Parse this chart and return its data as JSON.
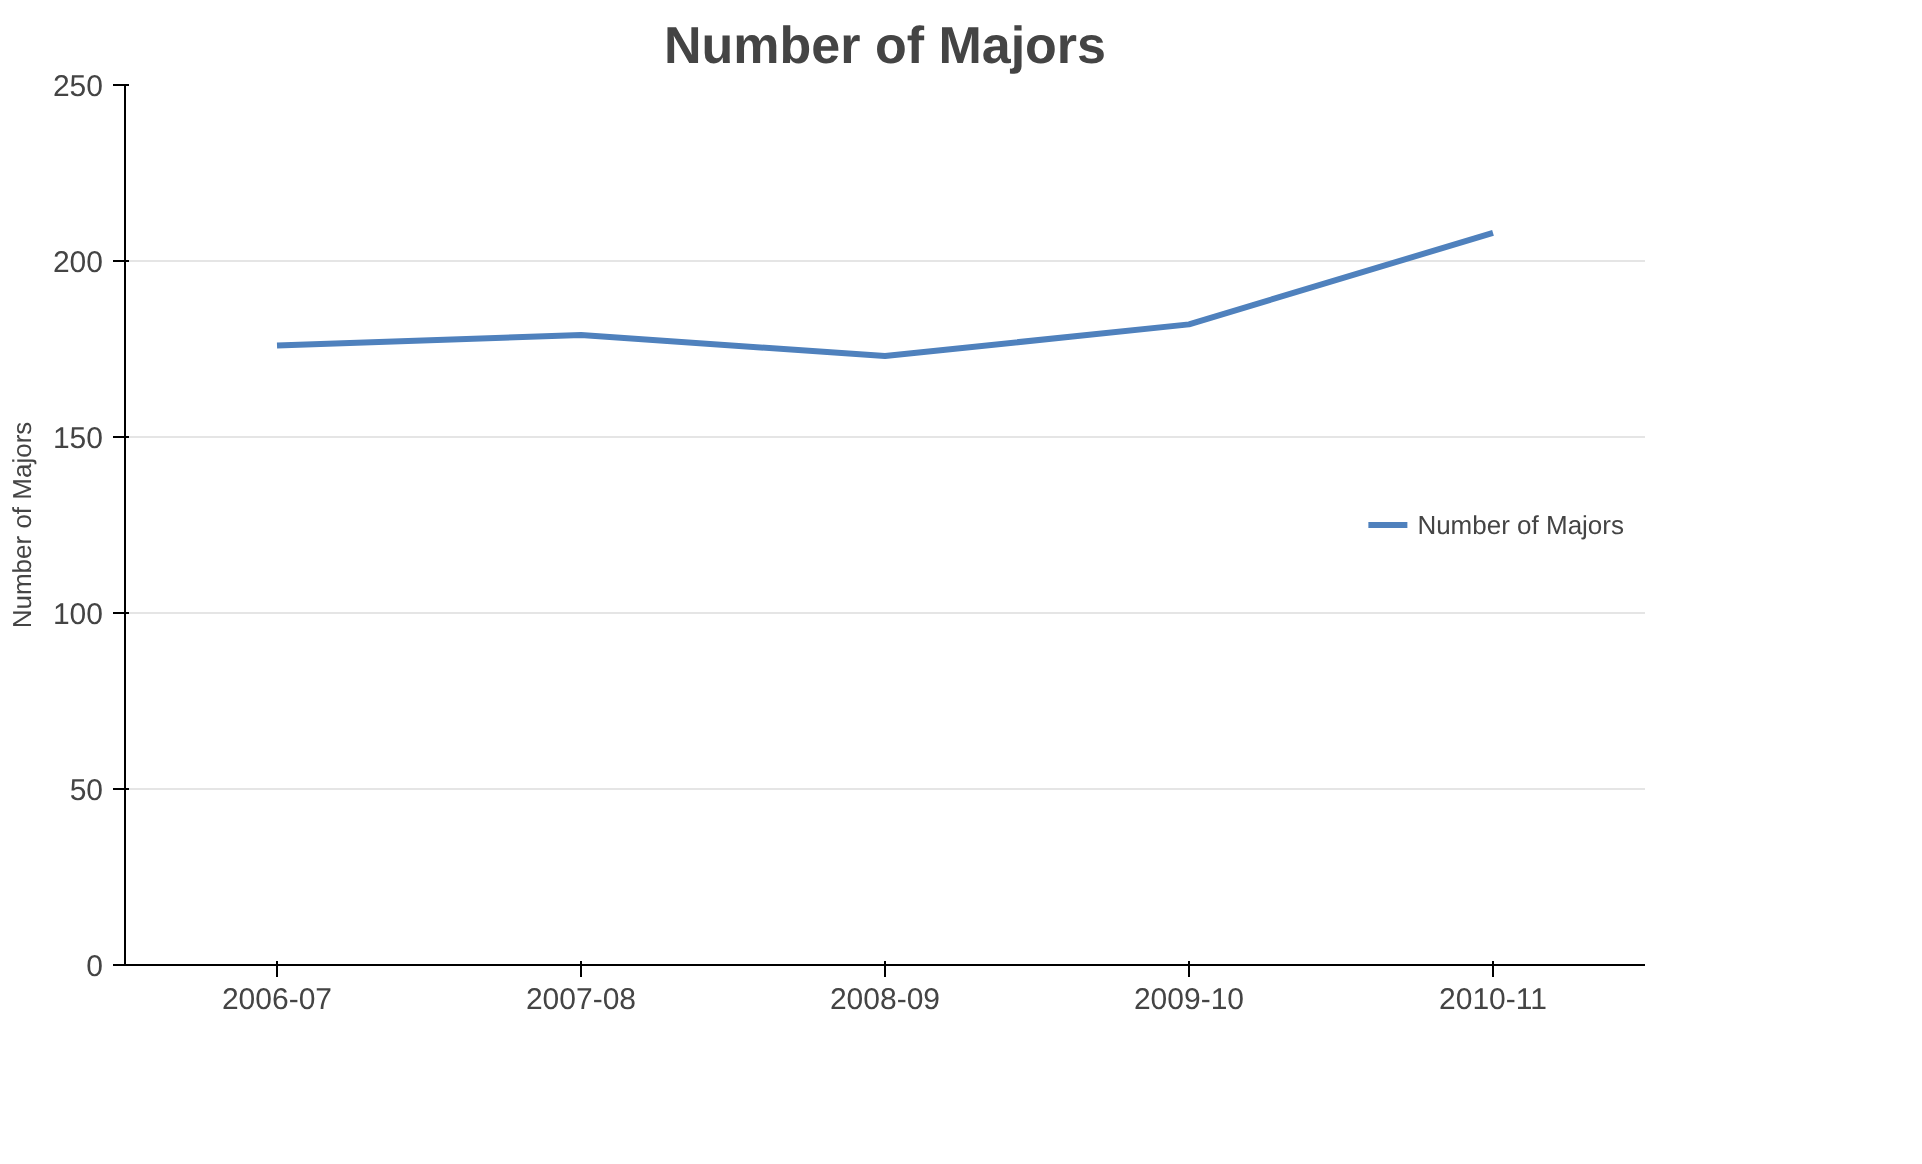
{
  "chart_data": {
    "type": "line",
    "title": "Number of Majors",
    "ylabel": "Number of Majors",
    "categories": [
      "2006-07",
      "2007-08",
      "2008-09",
      "2009-10",
      "2010-11"
    ],
    "series": [
      {
        "name": "Number of Majors",
        "color": "#4f81bd",
        "values": [
          176,
          179,
          173,
          182,
          208
        ]
      }
    ],
    "ylim": [
      0,
      250
    ],
    "yticks": [
      0,
      50,
      100,
      150,
      200,
      250
    ],
    "grid": "y",
    "legend": "right",
    "marker": "none"
  }
}
